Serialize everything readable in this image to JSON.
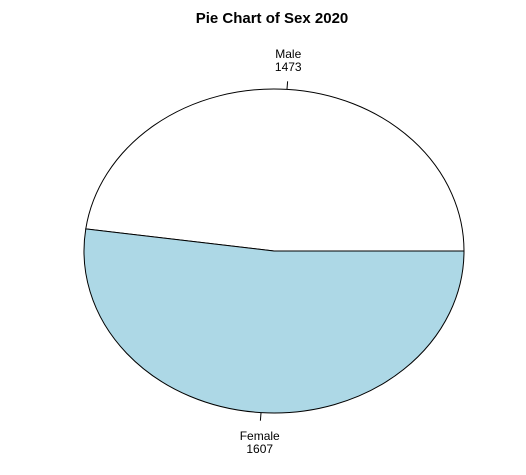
{
  "chart_data": {
    "type": "pie",
    "title": "Pie Chart of Sex 2020",
    "slices": [
      {
        "label": "Male",
        "value": 1473,
        "color": "#ffffff"
      },
      {
        "label": "Female",
        "value": 1607,
        "color": "#add8e6"
      }
    ],
    "border_color": "#000000",
    "start": "3 o'clock",
    "direction": "counter-clockwise"
  }
}
